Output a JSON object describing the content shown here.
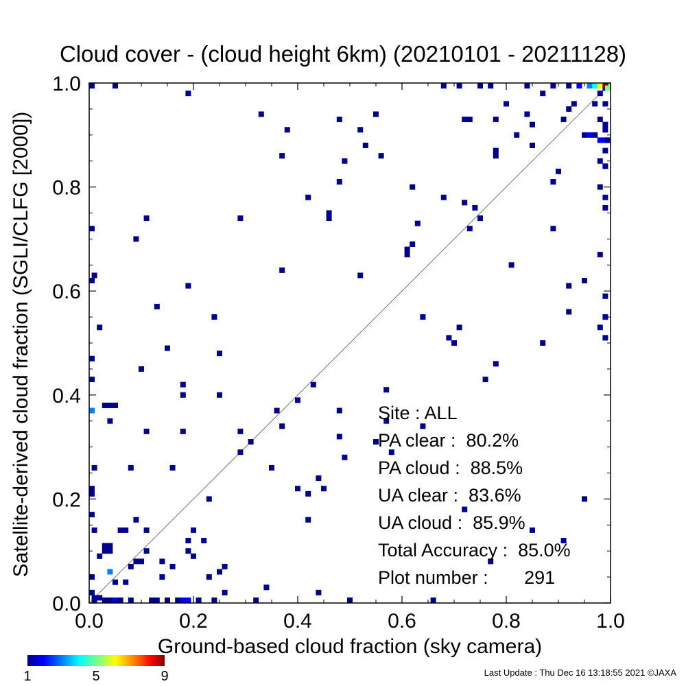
{
  "chart_data": {
    "type": "heatmap",
    "title": "Cloud cover - (cloud height 6km)  (20210101 - 20211128)",
    "xlabel": "Ground-based cloud fraction (sky camera)",
    "ylabel": "Satellite-derived cloud fraction (SGLI/CLFG [2000])",
    "xlim": [
      0.0,
      1.0
    ],
    "ylim": [
      0.0,
      1.0
    ],
    "x_ticks": [
      "0.0",
      "0.2",
      "0.4",
      "0.6",
      "0.8",
      "1.0"
    ],
    "y_ticks": [
      "0.0",
      "0.2",
      "0.4",
      "0.6",
      "0.8",
      "1.0"
    ],
    "grid": false,
    "reference_line": "1:1 diagonal",
    "colorbar": {
      "min": 1,
      "max": 9,
      "ticks": [
        "1",
        "5",
        "9"
      ]
    },
    "stats": [
      {
        "label": "Site : ALL"
      },
      {
        "label": "PA clear :  80.2%"
      },
      {
        "label": "PA cloud :  88.5%"
      },
      {
        "label": "UA clear :  83.6%"
      },
      {
        "label": "UA cloud :  85.9%"
      },
      {
        "label": "Total Accuracy :  85.0%"
      },
      {
        "label": "Plot number :       291"
      }
    ],
    "points": [
      [
        0.0,
        0.02,
        1
      ],
      [
        0.0,
        0.05,
        1
      ],
      [
        0.0,
        0.17,
        1
      ],
      [
        0.0,
        0.21,
        1
      ],
      [
        0.0,
        0.22,
        1
      ],
      [
        0.0,
        0.37,
        3
      ],
      [
        0.0,
        0.43,
        1
      ],
      [
        0.0,
        0.47,
        1
      ],
      [
        0.0,
        0.62,
        1
      ],
      [
        0.0,
        0.72,
        1
      ],
      [
        0.0,
        1.0,
        1
      ],
      [
        0.01,
        0.0,
        1
      ],
      [
        0.01,
        0.01,
        1
      ],
      [
        0.01,
        0.14,
        1
      ],
      [
        0.01,
        0.26,
        1
      ],
      [
        0.01,
        0.63,
        1
      ],
      [
        0.02,
        0.01,
        1
      ],
      [
        0.02,
        0.09,
        1
      ],
      [
        0.02,
        0.53,
        1
      ],
      [
        0.03,
        0.1,
        1
      ],
      [
        0.03,
        0.11,
        1
      ],
      [
        0.03,
        0.0,
        1
      ],
      [
        0.03,
        0.38,
        1
      ],
      [
        0.04,
        0.11,
        1
      ],
      [
        0.04,
        0.1,
        1
      ],
      [
        0.04,
        0.06,
        3
      ],
      [
        0.04,
        0.35,
        1
      ],
      [
        0.04,
        0.38,
        1
      ],
      [
        0.04,
        0.0,
        1
      ],
      [
        0.05,
        0.04,
        1
      ],
      [
        0.05,
        0.38,
        1
      ],
      [
        0.05,
        1.0,
        1
      ],
      [
        0.05,
        0.0,
        2
      ],
      [
        0.06,
        0.14,
        1
      ],
      [
        0.06,
        0.0,
        1
      ],
      [
        0.07,
        0.14,
        1
      ],
      [
        0.07,
        0.04,
        1
      ],
      [
        0.08,
        0.07,
        1
      ],
      [
        0.08,
        0.26,
        1
      ],
      [
        0.08,
        0.0,
        1
      ],
      [
        0.09,
        0.08,
        1
      ],
      [
        0.09,
        0.16,
        1
      ],
      [
        0.09,
        0.7,
        1
      ],
      [
        0.1,
        0.45,
        1
      ],
      [
        0.1,
        0.08,
        1
      ],
      [
        0.11,
        0.1,
        1
      ],
      [
        0.11,
        0.14,
        1
      ],
      [
        0.11,
        0.33,
        1
      ],
      [
        0.11,
        0.74,
        1
      ],
      [
        0.12,
        0.0,
        1
      ],
      [
        0.13,
        0.57,
        1
      ],
      [
        0.13,
        0.0,
        1
      ],
      [
        0.14,
        0.05,
        1
      ],
      [
        0.14,
        0.08,
        1
      ],
      [
        0.15,
        0.49,
        1
      ],
      [
        0.15,
        0.0,
        1
      ],
      [
        0.16,
        0.07,
        1
      ],
      [
        0.16,
        0.26,
        1
      ],
      [
        0.17,
        0.0,
        1
      ],
      [
        0.18,
        0.0,
        2
      ],
      [
        0.18,
        0.33,
        1
      ],
      [
        0.18,
        0.4,
        1
      ],
      [
        0.18,
        0.42,
        1
      ],
      [
        0.19,
        0.1,
        1
      ],
      [
        0.19,
        0.12,
        1
      ],
      [
        0.19,
        0.0,
        2
      ],
      [
        0.19,
        0.61,
        1
      ],
      [
        0.19,
        0.98,
        1
      ],
      [
        0.2,
        0.09,
        1
      ],
      [
        0.2,
        0.14,
        1
      ],
      [
        0.21,
        0.0,
        1
      ],
      [
        0.22,
        0.12,
        1
      ],
      [
        0.23,
        0.05,
        1
      ],
      [
        0.23,
        0.2,
        1
      ],
      [
        0.24,
        0.0,
        1
      ],
      [
        0.24,
        0.55,
        1
      ],
      [
        0.25,
        0.4,
        1
      ],
      [
        0.25,
        0.48,
        1
      ],
      [
        0.25,
        0.06,
        1
      ],
      [
        0.26,
        0.07,
        1
      ],
      [
        0.26,
        0.02,
        1
      ],
      [
        0.29,
        0.29,
        1
      ],
      [
        0.29,
        0.33,
        1
      ],
      [
        0.29,
        0.74,
        1
      ],
      [
        0.31,
        0.31,
        1
      ],
      [
        0.32,
        0.0,
        1
      ],
      [
        0.33,
        0.94,
        1
      ],
      [
        0.34,
        0.03,
        1
      ],
      [
        0.35,
        0.26,
        1
      ],
      [
        0.36,
        0.37,
        1
      ],
      [
        0.37,
        0.34,
        1
      ],
      [
        0.37,
        0.64,
        1
      ],
      [
        0.37,
        0.86,
        1
      ],
      [
        0.38,
        0.91,
        1
      ],
      [
        0.4,
        0.22,
        1
      ],
      [
        0.4,
        0.39,
        1
      ],
      [
        0.42,
        0.21,
        1
      ],
      [
        0.42,
        0.16,
        1
      ],
      [
        0.42,
        0.78,
        1
      ],
      [
        0.43,
        0.42,
        1
      ],
      [
        0.44,
        0.24,
        1
      ],
      [
        0.44,
        0.02,
        1
      ],
      [
        0.45,
        0.22,
        1
      ],
      [
        0.46,
        0.74,
        1
      ],
      [
        0.46,
        0.75,
        1
      ],
      [
        0.48,
        0.37,
        1
      ],
      [
        0.48,
        0.32,
        1
      ],
      [
        0.48,
        0.81,
        1
      ],
      [
        0.48,
        0.93,
        1
      ],
      [
        0.49,
        0.28,
        1
      ],
      [
        0.49,
        0.85,
        1
      ],
      [
        0.5,
        0.0,
        1
      ],
      [
        0.52,
        0.91,
        1
      ],
      [
        0.52,
        0.63,
        1
      ],
      [
        0.53,
        0.88,
        1
      ],
      [
        0.55,
        0.31,
        1
      ],
      [
        0.55,
        0.94,
        1
      ],
      [
        0.56,
        0.86,
        1
      ],
      [
        0.57,
        0.41,
        1
      ],
      [
        0.57,
        0.35,
        1
      ],
      [
        0.58,
        0.29,
        1
      ],
      [
        0.61,
        0.67,
        1
      ],
      [
        0.61,
        0.68,
        1
      ],
      [
        0.62,
        0.69,
        1
      ],
      [
        0.62,
        0.8,
        1
      ],
      [
        0.63,
        0.73,
        1
      ],
      [
        0.64,
        0.55,
        1
      ],
      [
        0.64,
        0.34,
        1
      ],
      [
        0.66,
        0.0,
        1
      ],
      [
        0.68,
        0.78,
        1
      ],
      [
        0.68,
        1.0,
        1
      ],
      [
        0.69,
        0.51,
        1
      ],
      [
        0.7,
        0.5,
        1
      ],
      [
        0.71,
        0.53,
        1
      ],
      [
        0.71,
        1.0,
        1
      ],
      [
        0.72,
        0.18,
        1
      ],
      [
        0.72,
        0.77,
        1
      ],
      [
        0.72,
        0.93,
        1
      ],
      [
        0.73,
        0.72,
        1
      ],
      [
        0.73,
        0.93,
        1
      ],
      [
        0.74,
        0.76,
        1
      ],
      [
        0.75,
        0.74,
        1
      ],
      [
        0.75,
        1.0,
        1
      ],
      [
        0.76,
        0.43,
        1
      ],
      [
        0.77,
        0.08,
        1
      ],
      [
        0.77,
        1.0,
        1
      ],
      [
        0.78,
        0.46,
        1
      ],
      [
        0.78,
        0.86,
        1
      ],
      [
        0.78,
        0.87,
        1
      ],
      [
        0.78,
        0.93,
        1
      ],
      [
        0.8,
        0.96,
        1
      ],
      [
        0.81,
        0.65,
        1
      ],
      [
        0.82,
        0.9,
        1
      ],
      [
        0.84,
        0.94,
        1
      ],
      [
        0.84,
        1.0,
        1
      ],
      [
        0.85,
        0.88,
        1
      ],
      [
        0.85,
        0.92,
        1
      ],
      [
        0.85,
        0.14,
        1
      ],
      [
        0.87,
        0.5,
        1
      ],
      [
        0.87,
        0.98,
        1
      ],
      [
        0.89,
        0.72,
        1
      ],
      [
        0.89,
        0.81,
        1
      ],
      [
        0.89,
        1.0,
        1
      ],
      [
        0.9,
        0.83,
        1
      ],
      [
        0.91,
        0.12,
        1
      ],
      [
        0.91,
        0.93,
        1
      ],
      [
        0.92,
        0.56,
        1
      ],
      [
        0.92,
        0.61,
        1
      ],
      [
        0.92,
        0.95,
        1
      ],
      [
        0.92,
        1.0,
        1
      ],
      [
        0.93,
        0.96,
        1
      ],
      [
        0.94,
        1.0,
        2
      ],
      [
        0.95,
        0.62,
        1
      ],
      [
        0.95,
        0.2,
        1
      ],
      [
        0.95,
        0.9,
        1
      ],
      [
        0.96,
        0.9,
        2
      ],
      [
        0.96,
        1.0,
        3
      ],
      [
        0.97,
        0.9,
        1
      ],
      [
        0.97,
        0.96,
        1
      ],
      [
        0.97,
        1.0,
        4
      ],
      [
        0.98,
        0.67,
        1
      ],
      [
        0.98,
        0.53,
        1
      ],
      [
        0.98,
        0.8,
        1
      ],
      [
        0.98,
        0.85,
        1
      ],
      [
        0.98,
        0.89,
        2
      ],
      [
        0.98,
        0.93,
        1
      ],
      [
        0.98,
        0.98,
        1
      ],
      [
        0.98,
        1.0,
        6
      ],
      [
        0.99,
        0.51,
        1
      ],
      [
        0.99,
        0.55,
        1
      ],
      [
        0.99,
        0.59,
        1
      ],
      [
        0.99,
        0.76,
        1
      ],
      [
        0.99,
        0.78,
        1
      ],
      [
        0.99,
        0.84,
        1
      ],
      [
        0.99,
        0.87,
        1
      ],
      [
        0.99,
        0.89,
        2
      ],
      [
        0.99,
        0.91,
        1
      ],
      [
        0.99,
        0.92,
        1
      ],
      [
        0.99,
        0.96,
        1
      ],
      [
        0.99,
        0.99,
        2
      ],
      [
        0.99,
        1.0,
        9
      ],
      [
        1.0,
        0.89,
        1
      ],
      [
        1.0,
        0.99,
        5
      ]
    ]
  },
  "footer": "Last Update : Thu Dec 16 13:18:55 2021  ©JAXA"
}
